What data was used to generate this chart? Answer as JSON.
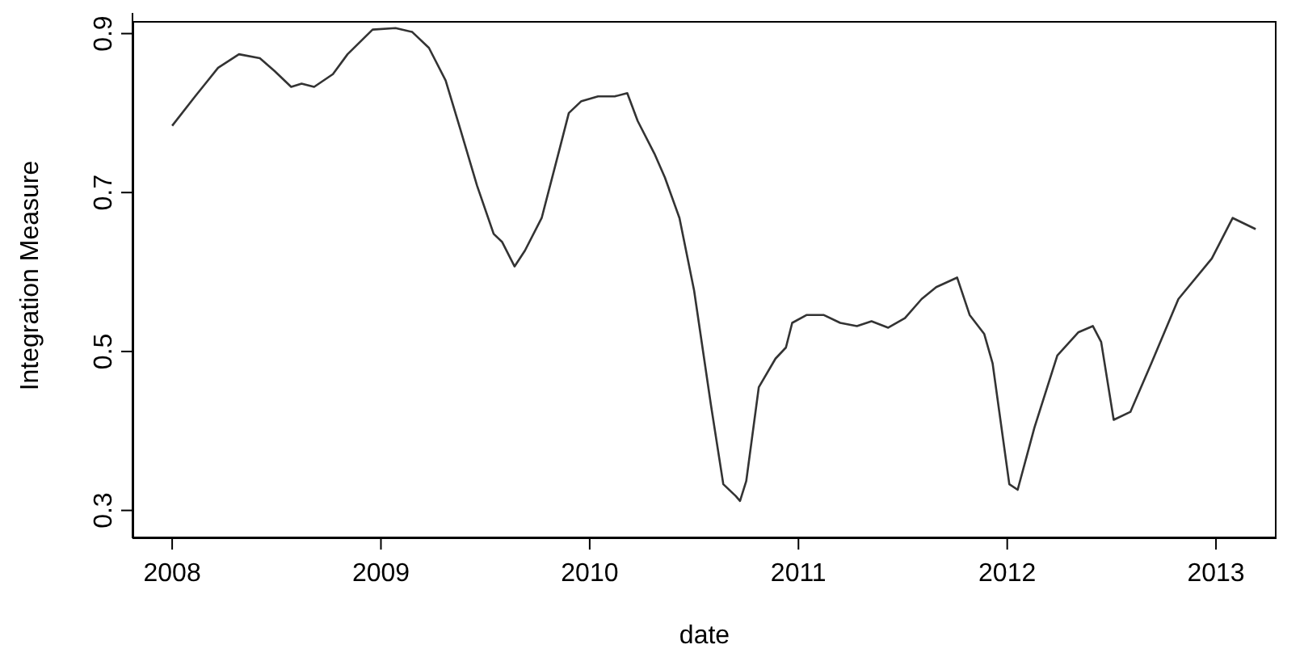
{
  "chart_data": {
    "type": "line",
    "xlabel": "date",
    "ylabel": "Integration Measure",
    "x": [
      2008.0,
      2008.11,
      2008.22,
      2008.32,
      2008.42,
      2008.49,
      2008.57,
      2008.62,
      2008.68,
      2008.77,
      2008.84,
      2008.96,
      2009.07,
      2009.15,
      2009.23,
      2009.31,
      2009.38,
      2009.46,
      2009.54,
      2009.58,
      2009.64,
      2009.69,
      2009.77,
      2009.85,
      2009.9,
      2009.96,
      2010.04,
      2010.12,
      2010.18,
      2010.23,
      2010.31,
      2010.36,
      2010.43,
      2010.5,
      2010.58,
      2010.64,
      2010.7,
      2010.72,
      2010.75,
      2010.81,
      2010.89,
      2010.94,
      2010.97,
      2011.04,
      2011.12,
      2011.2,
      2011.28,
      2011.35,
      2011.43,
      2011.51,
      2011.59,
      2011.66,
      2011.76,
      2011.82,
      2011.89,
      2011.93,
      2012.01,
      2012.05,
      2012.13,
      2012.24,
      2012.34,
      2012.41,
      2012.45,
      2012.51,
      2012.59,
      2012.69,
      2012.82,
      2012.98,
      2013.08,
      2013.19
    ],
    "series": [
      {
        "color": "#333333",
        "values": [
          0.784,
          0.821,
          0.857,
          0.874,
          0.869,
          0.853,
          0.833,
          0.837,
          0.833,
          0.849,
          0.874,
          0.905,
          0.907,
          0.902,
          0.882,
          0.841,
          0.78,
          0.709,
          0.648,
          0.638,
          0.607,
          0.627,
          0.668,
          0.749,
          0.8,
          0.815,
          0.821,
          0.821,
          0.825,
          0.79,
          0.749,
          0.719,
          0.668,
          0.577,
          0.434,
          0.333,
          0.318,
          0.312,
          0.337,
          0.455,
          0.491,
          0.505,
          0.536,
          0.546,
          0.546,
          0.536,
          0.532,
          0.538,
          0.53,
          0.542,
          0.566,
          0.581,
          0.593,
          0.546,
          0.522,
          0.485,
          0.333,
          0.326,
          0.404,
          0.495,
          0.524,
          0.532,
          0.512,
          0.414,
          0.424,
          0.485,
          0.566,
          0.617,
          0.668,
          0.654
        ]
      }
    ],
    "xlim": [
      2007.81,
      2013.29
    ],
    "xticks": [
      2008,
      2009,
      2010,
      2011,
      2012,
      2013
    ],
    "ylim": [
      0.265,
      0.926
    ],
    "yticks": [
      {
        "value": 0.3,
        "label": "0.3"
      },
      {
        "value": 0.5,
        "label": "0.5"
      },
      {
        "value": 0.7,
        "label": "0.7"
      },
      {
        "value": 0.9,
        "label": "0.9"
      }
    ],
    "grid": false,
    "legend": false,
    "marker": "none",
    "line_style": "solid"
  }
}
